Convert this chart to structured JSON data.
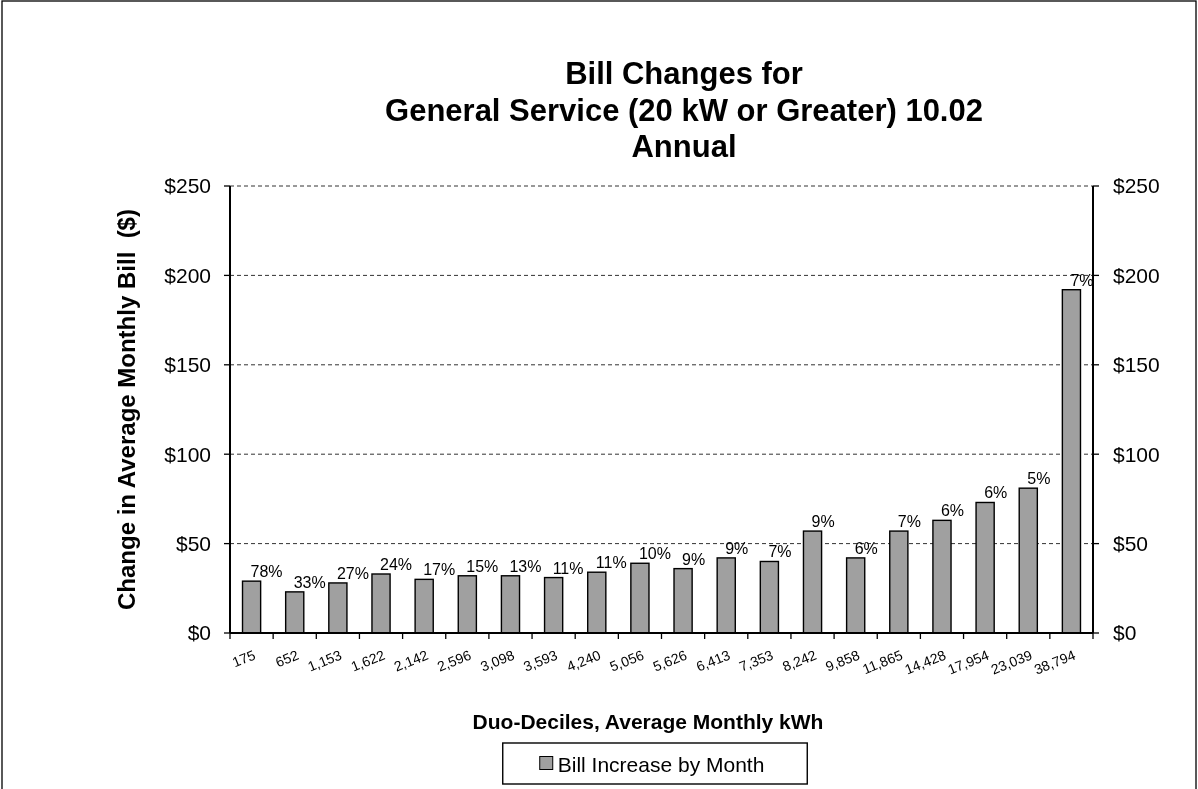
{
  "chart_data": {
    "type": "bar",
    "title": "Bill Changes for\nGeneral Service (20 kW or Greater) 10.02\nAnnual",
    "xlabel": "Duo-Deciles, Average Monthly kWh",
    "ylabel": "Change in Average Monthly Bill  ($)",
    "categories": [
      "175",
      "652",
      "1,153",
      "1,622",
      "2,142",
      "2,596",
      "3,098",
      "3,593",
      "4,240",
      "5,056",
      "5,626",
      "6,413",
      "7,353",
      "8,242",
      "9,858",
      "11,865",
      "14,428",
      "17,954",
      "23,039",
      "38,794"
    ],
    "series": [
      {
        "name": "Bill Increase by Month",
        "color": "#a0a0a0",
        "values": [
          29,
          23,
          28,
          33,
          30,
          32,
          32,
          31,
          34,
          39,
          36,
          42,
          40,
          57,
          42,
          57,
          63,
          73,
          81,
          192
        ]
      }
    ],
    "annotations": [
      {
        "text": "78%",
        "x": "175",
        "y": 29
      },
      {
        "text": "33%",
        "x": "652",
        "y": 23
      },
      {
        "text": "27%",
        "x": "1,153",
        "y": 28
      },
      {
        "text": "24%",
        "x": "1,622",
        "y": 33
      },
      {
        "text": "17%",
        "x": "2,142",
        "y": 30
      },
      {
        "text": "15%",
        "x": "2,596",
        "y": 32
      },
      {
        "text": "13%",
        "x": "3,098",
        "y": 32
      },
      {
        "text": "11%",
        "x": "3,593",
        "y": 31
      },
      {
        "text": "11%",
        "x": "4,240",
        "y": 34
      },
      {
        "text": "10%",
        "x": "5,056",
        "y": 39
      },
      {
        "text": "9%",
        "x": "5,626",
        "y": 36
      },
      {
        "text": "9%",
        "x": "6,413",
        "y": 42
      },
      {
        "text": "7%",
        "x": "7,353",
        "y": 40
      },
      {
        "text": "9%",
        "x": "8,242",
        "y": 57
      },
      {
        "text": "6%",
        "x": "9,858",
        "y": 42
      },
      {
        "text": "7%",
        "x": "11,865",
        "y": 57
      },
      {
        "text": "6%",
        "x": "14,428",
        "y": 63
      },
      {
        "text": "6%",
        "x": "17,954",
        "y": 73
      },
      {
        "text": "5%",
        "x": "23,039",
        "y": 81
      },
      {
        "text": "7%",
        "x": "38,794",
        "y": 192
      }
    ],
    "ylim": [
      0,
      250
    ],
    "yticks": [
      {
        "value": 0,
        "label": "$0"
      },
      {
        "value": 50,
        "label": "$50"
      },
      {
        "value": 100,
        "label": "$100"
      },
      {
        "value": 150,
        "label": "$150"
      },
      {
        "value": 200,
        "label": "$200"
      },
      {
        "value": 250,
        "label": "$250"
      }
    ],
    "y2lim": [
      0,
      250
    ],
    "y2ticks": [
      {
        "value": 0,
        "label": "$0"
      },
      {
        "value": 50,
        "label": "$50"
      },
      {
        "value": 100,
        "label": "$100"
      },
      {
        "value": 150,
        "label": "$150"
      },
      {
        "value": 200,
        "label": "$200"
      },
      {
        "value": 250,
        "label": "$250"
      }
    ],
    "grid": "y",
    "legend": "bottom"
  }
}
